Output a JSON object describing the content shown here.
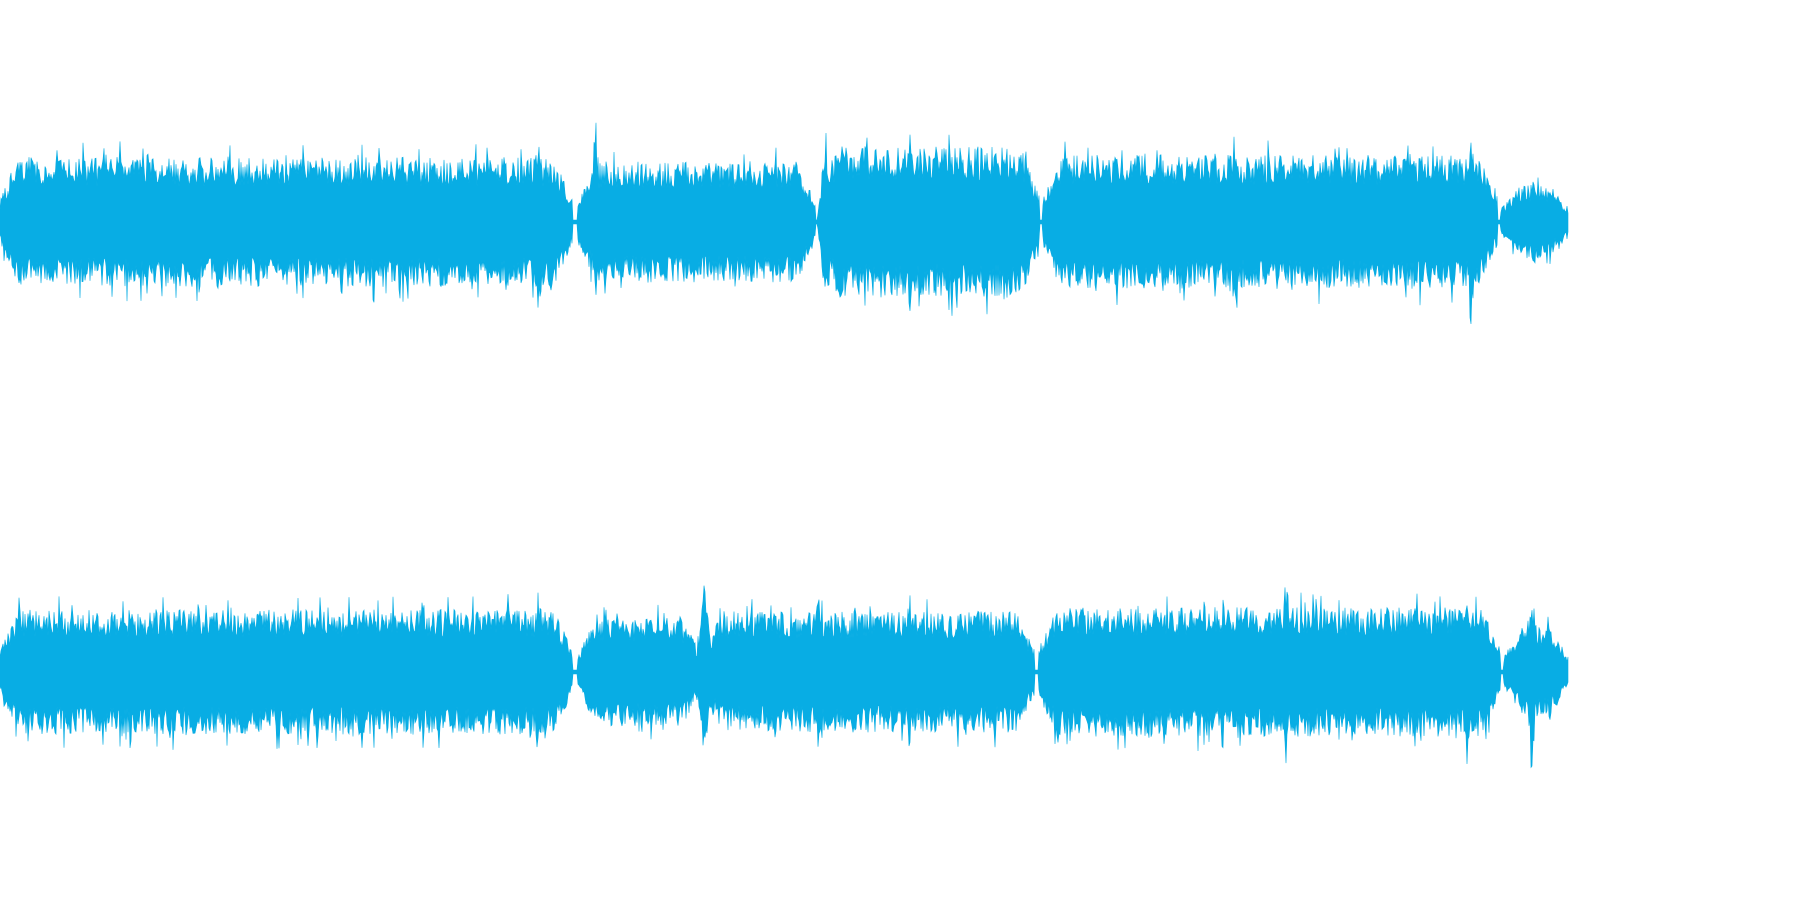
{
  "waveform": {
    "channel_count": 2,
    "color": "#08ADE4",
    "background": "#FFFFFF",
    "channels": [
      {
        "name": "",
        "segments": [
          {
            "start": 0.0,
            "end": 0.365,
            "level": 0.6
          },
          {
            "start": 0.368,
            "end": 0.52,
            "level": 0.56
          },
          {
            "start": 0.522,
            "end": 0.663,
            "level": 0.7
          },
          {
            "start": 0.665,
            "end": 0.955,
            "level": 0.62
          },
          {
            "start": 0.957,
            "end": 1.0,
            "level": 0.34
          }
        ],
        "peaks": [
          {
            "pos": 0.026,
            "amp": 0.42
          },
          {
            "pos": 0.094,
            "amp": 0.74
          },
          {
            "pos": 0.193,
            "amp": 0.76
          },
          {
            "pos": 0.24,
            "amp": 0.66
          },
          {
            "pos": 0.343,
            "amp": 0.98
          },
          {
            "pos": 0.38,
            "amp": 0.82
          },
          {
            "pos": 0.527,
            "amp": 0.88
          },
          {
            "pos": 0.58,
            "amp": 0.9
          },
          {
            "pos": 0.617,
            "amp": 0.76
          },
          {
            "pos": 0.69,
            "amp": 0.74
          },
          {
            "pos": 0.788,
            "amp": 0.95
          },
          {
            "pos": 0.83,
            "amp": 0.74
          },
          {
            "pos": 0.938,
            "amp": 0.98
          },
          {
            "pos": 0.978,
            "amp": 0.54
          }
        ]
      },
      {
        "name": "",
        "segments": [
          {
            "start": 0.0,
            "end": 0.365,
            "level": 0.58
          },
          {
            "start": 0.368,
            "end": 0.447,
            "level": 0.5
          },
          {
            "start": 0.448,
            "end": 0.66,
            "level": 0.56
          },
          {
            "start": 0.662,
            "end": 0.957,
            "level": 0.6
          },
          {
            "start": 0.959,
            "end": 1.0,
            "level": 0.42
          }
        ],
        "peaks": [
          {
            "pos": 0.048,
            "amp": 0.66
          },
          {
            "pos": 0.083,
            "amp": 0.72
          },
          {
            "pos": 0.145,
            "amp": 0.74
          },
          {
            "pos": 0.27,
            "amp": 0.76
          },
          {
            "pos": 0.343,
            "amp": 0.82
          },
          {
            "pos": 0.449,
            "amp": 0.88
          },
          {
            "pos": 0.522,
            "amp": 0.74
          },
          {
            "pos": 0.58,
            "amp": 0.78
          },
          {
            "pos": 0.78,
            "amp": 0.74
          },
          {
            "pos": 0.82,
            "amp": 0.96
          },
          {
            "pos": 0.935,
            "amp": 0.8
          },
          {
            "pos": 0.977,
            "amp": 0.84
          }
        ]
      }
    ]
  }
}
